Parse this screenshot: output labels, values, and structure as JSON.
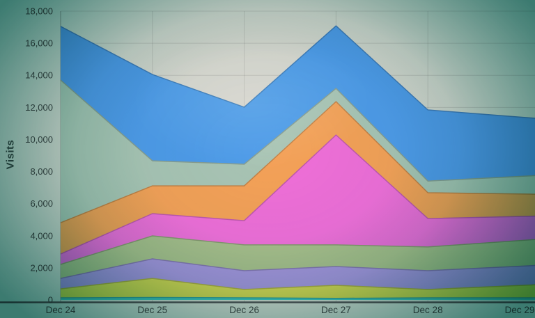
{
  "chart_data": {
    "type": "area",
    "stacked": true,
    "title": "",
    "ylabel": "Visits",
    "xlabel": "",
    "ylim": [
      0,
      18000
    ],
    "grid": true,
    "legend": "none",
    "categories": [
      "Dec 24",
      "Dec 25",
      "Dec 26",
      "Dec 27",
      "Dec 28",
      "Dec 29"
    ],
    "series": [
      {
        "name": "teal",
        "color": "#3EC4C0",
        "values": [
          130,
          150,
          130,
          100,
          130,
          130
        ]
      },
      {
        "name": "yellow",
        "color": "#D8D355",
        "values": [
          560,
          1190,
          520,
          810,
          520,
          770
        ]
      },
      {
        "name": "purple",
        "color": "#A795DC",
        "values": [
          650,
          1220,
          1170,
          1170,
          1170,
          1200
        ]
      },
      {
        "name": "green",
        "color": "#A9BE8C",
        "values": [
          870,
          1430,
          1610,
          1350,
          1480,
          1600
        ]
      },
      {
        "name": "pink",
        "color": "#F06FD8",
        "values": [
          650,
          1390,
          1510,
          6850,
          1770,
          1500
        ]
      },
      {
        "name": "orange",
        "color": "#F5A158",
        "values": [
          1950,
          1730,
          2170,
          2080,
          1610,
          1400
        ]
      },
      {
        "name": "sage",
        "color": "#A9C4B4",
        "values": [
          8890,
          1560,
          1350,
          820,
          730,
          1100
        ]
      },
      {
        "name": "blue",
        "color": "#4E9BE8",
        "values": [
          3350,
          5380,
          3550,
          3900,
          4430,
          3700
        ]
      }
    ],
    "yticks": {
      "values": [
        0,
        2000,
        4000,
        6000,
        8000,
        10000,
        12000,
        14000,
        16000,
        18000
      ],
      "labels": [
        "0",
        "2,000",
        "4,000",
        "6,000",
        "8,000",
        "10,000",
        "12,000",
        "14,000",
        "16,000",
        "18,000"
      ]
    }
  },
  "colors": {
    "background": "#D8D6CE",
    "axis_text": "#3F4A49",
    "axis_line": "#4E5456",
    "y_axis_line": "rgba(70,80,78,0.45)",
    "grid_line": "rgba(60,60,55,0.14)"
  }
}
